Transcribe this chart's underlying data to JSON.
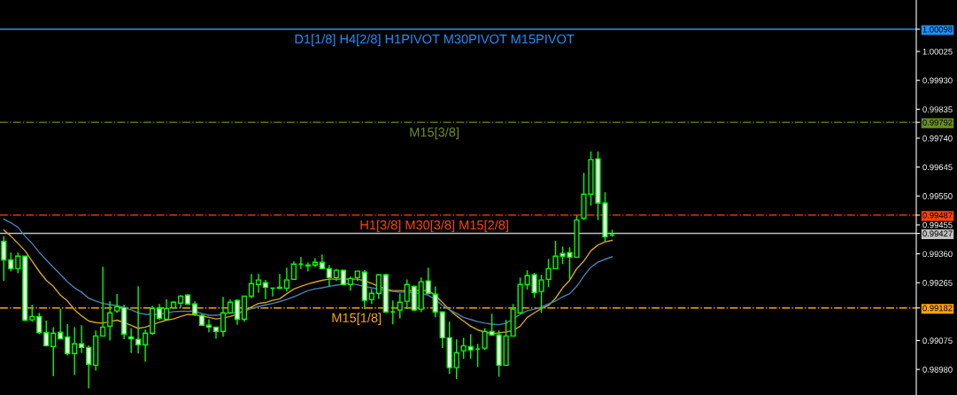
{
  "chart_data": {
    "type": "candlestick",
    "categories": [
      null,
      null,
      null,
      null,
      null,
      null,
      null,
      null,
      null,
      null,
      null,
      null,
      null,
      null,
      null,
      null,
      null,
      null,
      null,
      null,
      null,
      null,
      null,
      null,
      null,
      null,
      null,
      null,
      null,
      null,
      null,
      null,
      null,
      null,
      null,
      null,
      null,
      null,
      null,
      null,
      null,
      null,
      null,
      null,
      null,
      null,
      null,
      null,
      null,
      null,
      null,
      null,
      null,
      null,
      null,
      null,
      null,
      null,
      null,
      null,
      null,
      null,
      null,
      null,
      null,
      null,
      null,
      null,
      null,
      null,
      null,
      null,
      null,
      null,
      null,
      null,
      null,
      null,
      null,
      null,
      null,
      null,
      null,
      null,
      null,
      null,
      null
    ],
    "series": [
      {
        "type": "line",
        "color": "#daa520",
        "values": [
          0.99438,
          0.99418,
          0.99394,
          0.9937,
          0.99336,
          0.99302,
          0.99273,
          0.99253,
          0.99224,
          0.99205,
          0.99176,
          0.99156,
          0.99139,
          0.99134,
          0.99132,
          0.99137,
          0.99142,
          0.99134,
          0.99125,
          0.99115,
          0.99119,
          0.99127,
          0.99135,
          0.99142,
          0.99146,
          0.99154,
          0.99161,
          0.99159,
          0.99156,
          0.99151,
          0.99146,
          0.99149,
          0.99154,
          0.99161,
          0.99174,
          0.99185,
          0.99197,
          0.992,
          0.99207,
          0.99212,
          0.99229,
          0.99244,
          0.99253,
          0.99261,
          0.99267,
          0.99273,
          0.99277,
          0.99277,
          0.99277,
          0.99277,
          0.99277,
          0.99271,
          0.99263,
          0.99253,
          0.99244,
          0.99239,
          0.99239,
          0.99239,
          0.99239,
          0.99239,
          0.99239,
          0.99224,
          0.992,
          0.99176,
          0.99156,
          0.99139,
          0.99122,
          0.9911,
          0.99102,
          0.99098,
          0.991,
          0.99103,
          0.99108,
          0.99122,
          0.99151,
          0.99166,
          0.9918,
          0.9919,
          0.99214,
          0.99248,
          0.99273,
          0.99311,
          0.99336,
          0.9937,
          0.99389,
          0.99399,
          0.99404
        ]
      },
      {
        "type": "line",
        "color": "#4682b4",
        "values": [
          0.99474,
          0.99462,
          0.99447,
          0.99418,
          0.99394,
          0.99365,
          0.9934,
          0.99316,
          0.99292,
          0.99268,
          0.99248,
          0.99234,
          0.99214,
          0.99205,
          0.99197,
          0.99193,
          0.9919,
          0.99183,
          0.99176,
          0.99166,
          0.99161,
          0.99161,
          0.99161,
          0.99166,
          0.9917,
          0.99171,
          0.99171,
          0.99171,
          0.99164,
          0.99158,
          0.99158,
          0.99161,
          0.99166,
          0.99166,
          0.99171,
          0.9918,
          0.99187,
          0.99192,
          0.99197,
          0.99203,
          0.9921,
          0.99219,
          0.99229,
          0.99239,
          0.99245,
          0.99248,
          0.99253,
          0.99257,
          0.9926,
          0.99263,
          0.99258,
          0.99253,
          0.99248,
          0.99244,
          0.99239,
          0.99236,
          0.99234,
          0.99234,
          0.99232,
          0.99229,
          0.99224,
          0.9921,
          0.9919,
          0.99176,
          0.99164,
          0.99151,
          0.99144,
          0.99137,
          0.99132,
          0.99129,
          0.99127,
          0.99132,
          0.99146,
          0.99161,
          0.99173,
          0.99178,
          0.99185,
          0.99195,
          0.99205,
          0.99219,
          0.99229,
          0.99253,
          0.99287,
          0.99316,
          0.99333,
          0.99342,
          0.9935
        ]
      },
      {
        "color": "#00ff00",
        "ohlc": [
          [
            0.99401,
            0.99418,
            0.99271,
            0.9934
          ],
          [
            0.9934,
            0.99364,
            0.99302,
            0.99311
          ],
          [
            0.99311,
            0.99364,
            0.99296,
            0.99352
          ],
          [
            0.99352,
            0.99352,
            0.99139,
            0.99142
          ],
          [
            0.99143,
            0.99193,
            0.99137,
            0.99154
          ],
          [
            0.99154,
            0.99166,
            0.99096,
            0.99101
          ],
          [
            0.99101,
            0.99141,
            0.99055,
            0.99058
          ],
          [
            0.99055,
            0.99119,
            0.98958,
            0.99099
          ],
          [
            0.99102,
            0.9918,
            0.99081,
            0.99081
          ],
          [
            0.99087,
            0.99129,
            0.99026,
            0.99032
          ],
          [
            0.99032,
            0.99119,
            0.98962,
            0.99064
          ],
          [
            0.99064,
            0.99125,
            0.99034,
            0.99052
          ],
          [
            0.99052,
            0.99059,
            0.98918,
            0.98997
          ],
          [
            0.98994,
            0.99108,
            0.98976,
            0.9909
          ],
          [
            0.9909,
            0.99317,
            0.9909,
            0.99119
          ],
          [
            0.99122,
            0.99204,
            0.99075,
            0.99166
          ],
          [
            0.99172,
            0.99228,
            0.99166,
            0.99186
          ],
          [
            0.99183,
            0.99193,
            0.99079,
            0.99096
          ],
          [
            0.99087,
            0.99116,
            0.99034,
            0.99081
          ],
          [
            0.99079,
            0.99253,
            0.99032,
            0.99061
          ],
          [
            0.99061,
            0.99111,
            0.99005,
            0.99099
          ],
          [
            0.99099,
            0.99189,
            0.99093,
            0.9918
          ],
          [
            0.9918,
            0.99195,
            0.99143,
            0.99148
          ],
          [
            0.99145,
            0.9921,
            0.99145,
            0.9918
          ],
          [
            0.99183,
            0.99204,
            0.9918,
            0.99201
          ],
          [
            0.99198,
            0.99224,
            0.99183,
            0.99221
          ],
          [
            0.99224,
            0.99227,
            0.99192,
            0.99195
          ],
          [
            0.99195,
            0.99204,
            0.99156,
            0.99163
          ],
          [
            0.99157,
            0.99163,
            0.99125,
            0.99125
          ],
          [
            0.99125,
            0.99145,
            0.99102,
            0.99119
          ],
          [
            0.99119,
            0.99119,
            0.99081,
            0.99105
          ],
          [
            0.99105,
            0.99218,
            0.99087,
            0.99166
          ],
          [
            0.99166,
            0.9921,
            0.99166,
            0.99201
          ],
          [
            0.99207,
            0.9921,
            0.99127,
            0.99145
          ],
          [
            0.99145,
            0.99221,
            0.99137,
            0.99221
          ],
          [
            0.99221,
            0.99294,
            0.99214,
            0.99262
          ],
          [
            0.99259,
            0.99294,
            0.99232,
            0.99274
          ],
          [
            0.99265,
            0.99274,
            0.99211,
            0.9925
          ],
          [
            0.99247,
            0.99247,
            0.9922,
            0.99247
          ],
          [
            0.99247,
            0.99294,
            0.99244,
            0.9925
          ],
          [
            0.99247,
            0.99314,
            0.99236,
            0.99274
          ],
          [
            0.99276,
            0.99335,
            0.99274,
            0.99326
          ],
          [
            0.99326,
            0.99349,
            0.9931,
            0.99326
          ],
          [
            0.99323,
            0.99332,
            0.99302,
            0.9932
          ],
          [
            0.99323,
            0.99346,
            0.99316,
            0.99332
          ],
          [
            0.99332,
            0.99358,
            0.99311,
            0.99311
          ],
          [
            0.99311,
            0.99323,
            0.99253,
            0.99282
          ],
          [
            0.99282,
            0.99311,
            0.99271,
            0.99306
          ],
          [
            0.99306,
            0.99306,
            0.99259,
            0.99259
          ],
          [
            0.99259,
            0.99285,
            0.99239,
            0.99279
          ],
          [
            0.99282,
            0.99303,
            0.99271,
            0.99303
          ],
          [
            0.993,
            0.99306,
            0.99178,
            0.99207
          ],
          [
            0.9921,
            0.99244,
            0.99195,
            0.9923
          ],
          [
            0.9923,
            0.99291,
            0.99212,
            0.99291
          ],
          [
            0.99291,
            0.99294,
            0.99169,
            0.99169
          ],
          [
            0.99169,
            0.99207,
            0.99128,
            0.99169
          ],
          [
            0.99175,
            0.9923,
            0.99148,
            0.99201
          ],
          [
            0.99204,
            0.99276,
            0.99178,
            0.99259
          ],
          [
            0.99253,
            0.99256,
            0.99172,
            0.99175
          ],
          [
            0.99178,
            0.99282,
            0.99169,
            0.99268
          ],
          [
            0.99271,
            0.99314,
            0.99227,
            0.9923
          ],
          [
            0.99227,
            0.99253,
            0.99151,
            0.99169
          ],
          [
            0.99169,
            0.99169,
            0.9905,
            0.99084
          ],
          [
            0.99084,
            0.99137,
            0.98965,
            0.98986
          ],
          [
            0.98986,
            0.99079,
            0.98948,
            0.99035
          ],
          [
            0.99041,
            0.99084,
            0.99015,
            0.99058
          ],
          [
            0.99055,
            0.99096,
            0.99015,
            0.99044
          ],
          [
            0.99047,
            0.99064,
            0.98988,
            0.99047
          ],
          [
            0.9905,
            0.99116,
            0.99044,
            0.99105
          ],
          [
            0.99105,
            0.99163,
            0.99093,
            0.99093
          ],
          [
            0.99093,
            0.99108,
            0.98956,
            0.98994
          ],
          [
            0.98994,
            0.99143,
            0.98994,
            0.9909
          ],
          [
            0.9909,
            0.99195,
            0.9909,
            0.99178
          ],
          [
            0.99166,
            0.99282,
            0.99166,
            0.99259
          ],
          [
            0.99259,
            0.99306,
            0.99242,
            0.99288
          ],
          [
            0.99291,
            0.99297,
            0.99215,
            0.99233
          ],
          [
            0.99236,
            0.99291,
            0.99166,
            0.99274
          ],
          [
            0.99276,
            0.99343,
            0.9925,
            0.99311
          ],
          [
            0.99311,
            0.99402,
            0.99311,
            0.99352
          ],
          [
            0.99361,
            0.99384,
            0.99326,
            0.99352
          ],
          [
            0.99364,
            0.99381,
            0.99276,
            0.99349
          ],
          [
            0.99349,
            0.99486,
            0.99349,
            0.99471
          ],
          [
            0.99477,
            0.99626,
            0.99471,
            0.99556
          ],
          [
            0.99556,
            0.99696,
            0.99518,
            0.99669
          ],
          [
            0.99672,
            0.99696,
            0.99471,
            0.99527
          ],
          [
            0.99527,
            0.99562,
            0.99399,
            0.99416
          ],
          [
            0.99422,
            0.99439,
            0.99416,
            0.99422
          ]
        ]
      }
    ],
    "ylim": [
      0.98896,
      1.00194
    ],
    "yticks": [
      {
        "value": 1.00098,
        "label": "1.00098"
      },
      {
        "value": 1.00025,
        "label": "1.00025"
      },
      {
        "value": 0.9993,
        "label": "0.99930"
      },
      {
        "value": 0.99835,
        "label": "0.99835"
      },
      {
        "value": 0.99792,
        "label": "0.99792"
      },
      {
        "value": 0.9974,
        "label": "0.99740"
      },
      {
        "value": 0.99645,
        "label": "0.99645"
      },
      {
        "value": 0.9955,
        "label": "0.99550"
      },
      {
        "value": 0.99487,
        "label": "0.99487"
      },
      {
        "value": 0.99455,
        "label": "0.99455"
      },
      {
        "value": 0.99427,
        "label": "0.99427"
      },
      {
        "value": 0.9936,
        "label": "0.99360"
      },
      {
        "value": 0.99265,
        "label": "0.99265"
      },
      {
        "value": 0.99182,
        "label": "0.99182"
      },
      {
        "value": 0.99075,
        "label": "0.99075"
      },
      {
        "value": 0.9898,
        "label": "0.98980"
      }
    ],
    "ref_lines": [
      {
        "axis": "y",
        "value": 1.00098,
        "label": "D1[1/8] H4[2/8] H1PIVOT M30PIVOT M15PIVOT",
        "color": "#1e90ff",
        "line_style": "solid"
      },
      {
        "axis": "y",
        "value": 0.99792,
        "label": "M15[3/8]",
        "color": "#6b8e23",
        "line_style": "dashdot"
      },
      {
        "axis": "y",
        "value": 0.99487,
        "label": "H1[3/8] M30[3/8] M15[2/8]",
        "color": "#ff4500",
        "line_style": "dashdot"
      },
      {
        "axis": "y",
        "value": 0.99427,
        "color": "#c0c0c0",
        "line_style": "solid"
      },
      {
        "axis": "y",
        "value": 0.99182,
        "label": "M15[1/8]",
        "color": "#ffa500",
        "line_style": "dashdot"
      }
    ],
    "grid": false,
    "legend": false,
    "tick_labels": "y"
  }
}
